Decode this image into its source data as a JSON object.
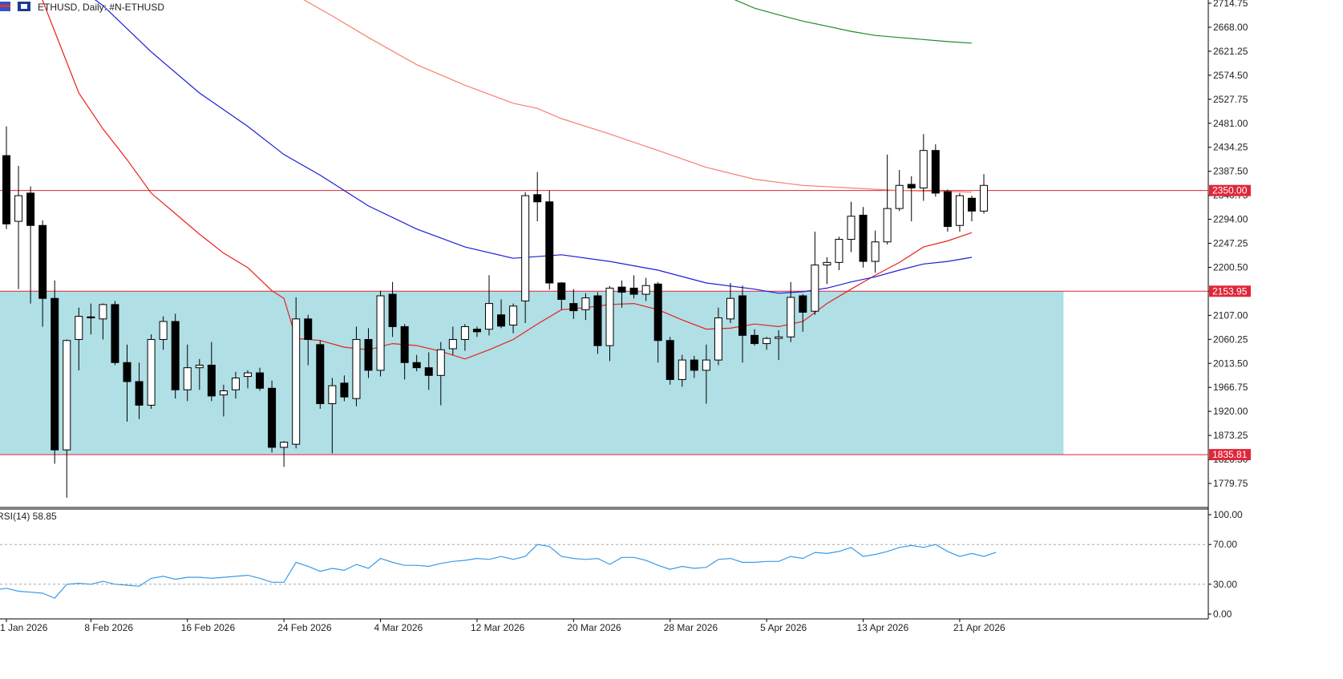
{
  "header": {
    "title": "ETHUSD, Daily:  #N-ETHUSD"
  },
  "colors": {
    "zone_fill": "#b0dfe5",
    "level_line": "#e0263a",
    "level_label_bg": "#e0263a",
    "ma_red": "#e8211f",
    "ma_blue": "#1a1fd6",
    "ma_salmon": "#fa7f6c",
    "ma_green": "#1e8c28",
    "rsi_line": "#3a9ae8",
    "candle": "#000000"
  },
  "chart_data": [
    {
      "type": "candlestick",
      "symbol": "ETHUSD",
      "timeframe": "Daily",
      "y_ticks": [
        2714.75,
        2668.0,
        2621.25,
        2574.5,
        2527.75,
        2481.0,
        2434.25,
        2387.5,
        2340.75,
        2294.0,
        2247.25,
        2200.5,
        2153.95,
        2107.0,
        2060.25,
        2013.5,
        1966.75,
        1920.0,
        1873.25,
        1826.5,
        1779.75
      ],
      "y_tick_labels": [
        "2714.75",
        "2668.00",
        "2621.25",
        "2574.50",
        "2527.75",
        "2481.00",
        "2434.25",
        "2387.50",
        "2340.75",
        "2294.00",
        "2247.25",
        "2200.50",
        "2153.95",
        "2107.00",
        "2060.25",
        "2013.50",
        "1966.75",
        "1920.00",
        "1873.25",
        "1826.50",
        "1779.75"
      ],
      "ylim": [
        1731,
        2720
      ],
      "x_labels": [
        {
          "text": "1 Jan 2026",
          "index": 1
        },
        {
          "text": "8 Feb 2026",
          "index": 8
        },
        {
          "text": "16 Feb 2026",
          "index": 16
        },
        {
          "text": "24 Feb 2026",
          "index": 24
        },
        {
          "text": "4 Mar 2026",
          "index": 32
        },
        {
          "text": "12 Mar 2026",
          "index": 40
        },
        {
          "text": "20 Mar 2026",
          "index": 48
        },
        {
          "text": "28 Mar 2026",
          "index": 56
        },
        {
          "text": "5 Apr 2026",
          "index": 64
        },
        {
          "text": "13 Apr 2026",
          "index": 72
        },
        {
          "text": "21 Apr 2026",
          "index": 80
        }
      ],
      "levels": [
        {
          "price": 2350.0,
          "label": "2350.00"
        },
        {
          "price": 2153.95,
          "label": "2153.95"
        },
        {
          "price": 1835.81,
          "label": "1835.81"
        }
      ],
      "zone": {
        "top": 2153.95,
        "bottom": 1835.81,
        "end_index": 88
      },
      "candles": [
        {
          "o": 2418,
          "h": 2475,
          "l": 2275,
          "c": 2285
        },
        {
          "o": 2290,
          "h": 2398,
          "l": 2158,
          "c": 2340
        },
        {
          "o": 2345,
          "h": 2358,
          "l": 2130,
          "c": 2282
        },
        {
          "o": 2282,
          "h": 2292,
          "l": 2085,
          "c": 2140
        },
        {
          "o": 2140,
          "h": 2175,
          "l": 1818,
          "c": 1845
        },
        {
          "o": 1845,
          "h": 2060,
          "l": 1752,
          "c": 2058
        },
        {
          "o": 2060,
          "h": 2122,
          "l": 2000,
          "c": 2105
        },
        {
          "o": 2104,
          "h": 2130,
          "l": 2070,
          "c": 2102
        },
        {
          "o": 2100,
          "h": 2130,
          "l": 2060,
          "c": 2128
        },
        {
          "o": 2128,
          "h": 2135,
          "l": 2010,
          "c": 2015
        },
        {
          "o": 2015,
          "h": 2050,
          "l": 1900,
          "c": 1978
        },
        {
          "o": 1978,
          "h": 2015,
          "l": 1905,
          "c": 1932
        },
        {
          "o": 1932,
          "h": 2070,
          "l": 1925,
          "c": 2060
        },
        {
          "o": 2060,
          "h": 2105,
          "l": 2040,
          "c": 2095
        },
        {
          "o": 2095,
          "h": 2110,
          "l": 1945,
          "c": 1962
        },
        {
          "o": 1962,
          "h": 2050,
          "l": 1940,
          "c": 2005
        },
        {
          "o": 2005,
          "h": 2022,
          "l": 1962,
          "c": 2010
        },
        {
          "o": 2010,
          "h": 2055,
          "l": 1940,
          "c": 1950
        },
        {
          "o": 1952,
          "h": 1972,
          "l": 1910,
          "c": 1960
        },
        {
          "o": 1962,
          "h": 1997,
          "l": 1945,
          "c": 1985
        },
        {
          "o": 1988,
          "h": 2000,
          "l": 1965,
          "c": 1995
        },
        {
          "o": 1995,
          "h": 2005,
          "l": 1960,
          "c": 1965
        },
        {
          "o": 1965,
          "h": 1980,
          "l": 1840,
          "c": 1850
        },
        {
          "o": 1850,
          "h": 1862,
          "l": 1812,
          "c": 1860
        },
        {
          "o": 1856,
          "h": 2142,
          "l": 1848,
          "c": 2100
        },
        {
          "o": 2100,
          "h": 2108,
          "l": 2010,
          "c": 2060
        },
        {
          "o": 2050,
          "h": 2058,
          "l": 1925,
          "c": 1935
        },
        {
          "o": 1935,
          "h": 1985,
          "l": 1838,
          "c": 1970
        },
        {
          "o": 1975,
          "h": 1990,
          "l": 1940,
          "c": 1948
        },
        {
          "o": 1945,
          "h": 2085,
          "l": 1930,
          "c": 2060
        },
        {
          "o": 2060,
          "h": 2082,
          "l": 1985,
          "c": 2000
        },
        {
          "o": 2000,
          "h": 2155,
          "l": 1988,
          "c": 2145
        },
        {
          "o": 2148,
          "h": 2172,
          "l": 2065,
          "c": 2085
        },
        {
          "o": 2085,
          "h": 2090,
          "l": 1982,
          "c": 2015
        },
        {
          "o": 2015,
          "h": 2030,
          "l": 1998,
          "c": 2005
        },
        {
          "o": 2005,
          "h": 2035,
          "l": 1962,
          "c": 1990
        },
        {
          "o": 1990,
          "h": 2055,
          "l": 1932,
          "c": 2040
        },
        {
          "o": 2042,
          "h": 2085,
          "l": 2030,
          "c": 2060
        },
        {
          "o": 2060,
          "h": 2090,
          "l": 2038,
          "c": 2085
        },
        {
          "o": 2080,
          "h": 2085,
          "l": 2065,
          "c": 2075
        },
        {
          "o": 2080,
          "h": 2185,
          "l": 2068,
          "c": 2130
        },
        {
          "o": 2108,
          "h": 2138,
          "l": 2082,
          "c": 2086
        },
        {
          "o": 2088,
          "h": 2130,
          "l": 2072,
          "c": 2125
        },
        {
          "o": 2135,
          "h": 2347,
          "l": 2092,
          "c": 2340
        },
        {
          "o": 2342,
          "h": 2386,
          "l": 2290,
          "c": 2328
        },
        {
          "o": 2328,
          "h": 2350,
          "l": 2157,
          "c": 2170
        },
        {
          "o": 2170,
          "h": 2172,
          "l": 2118,
          "c": 2138
        },
        {
          "o": 2130,
          "h": 2158,
          "l": 2100,
          "c": 2116
        },
        {
          "o": 2118,
          "h": 2150,
          "l": 2098,
          "c": 2141
        },
        {
          "o": 2145,
          "h": 2152,
          "l": 2032,
          "c": 2048
        },
        {
          "o": 2048,
          "h": 2164,
          "l": 2018,
          "c": 2160
        },
        {
          "o": 2162,
          "h": 2175,
          "l": 2122,
          "c": 2152
        },
        {
          "o": 2160,
          "h": 2185,
          "l": 2140,
          "c": 2148
        },
        {
          "o": 2148,
          "h": 2180,
          "l": 2135,
          "c": 2165
        },
        {
          "o": 2168,
          "h": 2172,
          "l": 2015,
          "c": 2058
        },
        {
          "o": 2058,
          "h": 2065,
          "l": 1972,
          "c": 1982
        },
        {
          "o": 1982,
          "h": 2030,
          "l": 1968,
          "c": 2020
        },
        {
          "o": 2020,
          "h": 2028,
          "l": 1985,
          "c": 2000
        },
        {
          "o": 2000,
          "h": 2050,
          "l": 1935,
          "c": 2020
        },
        {
          "o": 2020,
          "h": 2122,
          "l": 2010,
          "c": 2102
        },
        {
          "o": 2100,
          "h": 2170,
          "l": 2092,
          "c": 2140
        },
        {
          "o": 2145,
          "h": 2165,
          "l": 2015,
          "c": 2068
        },
        {
          "o": 2068,
          "h": 2080,
          "l": 2048,
          "c": 2052
        },
        {
          "o": 2052,
          "h": 2065,
          "l": 2040,
          "c": 2062
        },
        {
          "o": 2062,
          "h": 2078,
          "l": 2020,
          "c": 2065
        },
        {
          "o": 2065,
          "h": 2172,
          "l": 2055,
          "c": 2142
        },
        {
          "o": 2145,
          "h": 2148,
          "l": 2075,
          "c": 2113
        },
        {
          "o": 2115,
          "h": 2270,
          "l": 2108,
          "c": 2205
        },
        {
          "o": 2205,
          "h": 2220,
          "l": 2168,
          "c": 2210
        },
        {
          "o": 2210,
          "h": 2260,
          "l": 2195,
          "c": 2255
        },
        {
          "o": 2255,
          "h": 2328,
          "l": 2230,
          "c": 2300
        },
        {
          "o": 2302,
          "h": 2318,
          "l": 2200,
          "c": 2212
        },
        {
          "o": 2212,
          "h": 2272,
          "l": 2190,
          "c": 2250
        },
        {
          "o": 2250,
          "h": 2420,
          "l": 2245,
          "c": 2315
        },
        {
          "o": 2315,
          "h": 2390,
          "l": 2310,
          "c": 2360
        },
        {
          "o": 2362,
          "h": 2378,
          "l": 2290,
          "c": 2355
        },
        {
          "o": 2355,
          "h": 2460,
          "l": 2330,
          "c": 2428
        },
        {
          "o": 2428,
          "h": 2440,
          "l": 2338,
          "c": 2345
        },
        {
          "o": 2348,
          "h": 2352,
          "l": 2270,
          "c": 2280
        },
        {
          "o": 2282,
          "h": 2345,
          "l": 2270,
          "c": 2340
        },
        {
          "o": 2335,
          "h": 2340,
          "l": 2290,
          "c": 2310
        },
        {
          "o": 2310,
          "h": 2382,
          "l": 2305,
          "c": 2360
        }
      ],
      "moving_averages": [
        {
          "color_key": "ma_red",
          "points": [
            [
              0,
              3200
            ],
            [
              2,
              2780
            ],
            [
              4,
              2660
            ],
            [
              6,
              2540
            ],
            [
              8,
              2470
            ],
            [
              10,
              2410
            ],
            [
              12,
              2345
            ],
            [
              14,
              2305
            ],
            [
              16,
              2265
            ],
            [
              18,
              2228
            ],
            [
              20,
              2200
            ],
            [
              22,
              2155
            ],
            [
              23,
              2140
            ],
            [
              24,
              2062
            ],
            [
              26,
              2058
            ],
            [
              28,
              2045
            ],
            [
              30,
              2040
            ],
            [
              32,
              2052
            ],
            [
              34,
              2048
            ],
            [
              36,
              2037
            ],
            [
              38,
              2022
            ],
            [
              40,
              2040
            ],
            [
              42,
              2060
            ],
            [
              44,
              2090
            ],
            [
              46,
              2118
            ],
            [
              48,
              2122
            ],
            [
              50,
              2128
            ],
            [
              52,
              2130
            ],
            [
              54,
              2118
            ],
            [
              56,
              2098
            ],
            [
              58,
              2080
            ],
            [
              60,
              2082
            ],
            [
              62,
              2090
            ],
            [
              64,
              2085
            ],
            [
              66,
              2095
            ],
            [
              68,
              2130
            ],
            [
              70,
              2158
            ],
            [
              72,
              2185
            ],
            [
              74,
              2210
            ],
            [
              76,
              2240
            ],
            [
              78,
              2252
            ],
            [
              80,
              2268
            ]
          ]
        },
        {
          "color_key": "ma_blue",
          "points": [
            [
              4,
              2780
            ],
            [
              8,
              2710
            ],
            [
              12,
              2620
            ],
            [
              16,
              2540
            ],
            [
              20,
              2475
            ],
            [
              23,
              2420
            ],
            [
              26,
              2380
            ],
            [
              30,
              2320
            ],
            [
              34,
              2275
            ],
            [
              38,
              2240
            ],
            [
              42,
              2218
            ],
            [
              46,
              2225
            ],
            [
              50,
              2212
            ],
            [
              54,
              2195
            ],
            [
              58,
              2170
            ],
            [
              62,
              2158
            ],
            [
              64,
              2150
            ],
            [
              66,
              2153
            ],
            [
              68,
              2160
            ],
            [
              70,
              2172
            ],
            [
              72,
              2182
            ],
            [
              74,
              2195
            ],
            [
              76,
              2207
            ],
            [
              78,
              2212
            ],
            [
              80,
              2220
            ]
          ]
        },
        {
          "color_key": "ma_salmon",
          "points": [
            [
              24,
              2730
            ],
            [
              27,
              2690
            ],
            [
              30,
              2648
            ],
            [
              34,
              2595
            ],
            [
              38,
              2555
            ],
            [
              42,
              2520
            ],
            [
              44,
              2510
            ],
            [
              46,
              2490
            ],
            [
              50,
              2460
            ],
            [
              54,
              2428
            ],
            [
              58,
              2395
            ],
            [
              62,
              2372
            ],
            [
              66,
              2360
            ],
            [
              70,
              2355
            ],
            [
              74,
              2350
            ],
            [
              78,
              2348
            ],
            [
              80,
              2347
            ]
          ]
        },
        {
          "color_key": "ma_green",
          "points": [
            [
              60,
              2725
            ],
            [
              62,
              2705
            ],
            [
              64,
              2692
            ],
            [
              66,
              2680
            ],
            [
              68,
              2670
            ],
            [
              70,
              2660
            ],
            [
              72,
              2652
            ],
            [
              74,
              2648
            ],
            [
              76,
              2644
            ],
            [
              78,
              2640
            ],
            [
              80,
              2637
            ]
          ]
        }
      ]
    },
    {
      "type": "line",
      "indicator_label": "RSI(14) 58.85",
      "ylim": [
        0,
        100
      ],
      "y_ticks": [
        100.0,
        70.0,
        30.0,
        0.0
      ],
      "y_tick_labels": [
        "100.00",
        "70.00",
        "30.00",
        "0.00"
      ],
      "levels": [
        70,
        30
      ],
      "values": [
        24,
        26,
        23,
        22,
        21,
        16,
        30,
        31,
        30,
        33,
        30,
        29,
        28,
        36,
        38,
        35,
        37,
        37,
        36,
        37,
        38,
        39,
        36,
        32,
        32,
        52,
        48,
        43,
        46,
        44,
        50,
        46,
        56,
        52,
        49,
        49,
        48,
        51,
        53,
        54,
        56,
        55,
        58,
        55,
        58,
        70,
        68,
        58,
        56,
        55,
        56,
        50,
        57,
        57,
        54,
        49,
        45,
        48,
        46,
        47,
        55,
        56,
        52,
        52,
        53,
        53,
        58,
        56,
        62,
        61,
        63,
        67,
        58,
        60,
        63,
        67,
        69,
        67,
        70,
        63,
        58,
        61,
        58,
        62
      ]
    }
  ]
}
